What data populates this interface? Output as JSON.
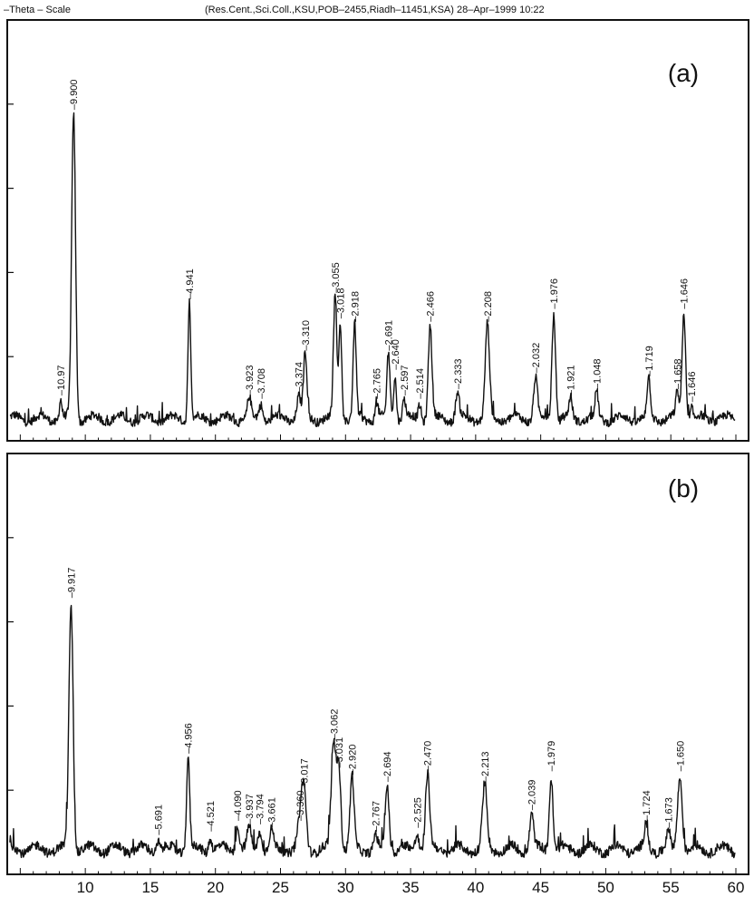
{
  "header": {
    "left": "–Theta – Scale",
    "right": "(Res.Cent.,Sci.Coll.,KSU,POB–2455,Riadh–11451,KSA) 28–Apr–1999 10:22"
  },
  "chart_data": [
    {
      "type": "line",
      "panel_label": "(a)",
      "xlim": [
        4,
        60
      ],
      "ylim": [
        0,
        100
      ],
      "x_ticks": [],
      "peaks": [
        {
          "x": 8.1,
          "y": 6,
          "w": 0.1,
          "label": "–10.97"
        },
        {
          "x": 9.1,
          "y": 95,
          "w": 0.15,
          "label": "–9.900"
        },
        {
          "x": 18.0,
          "y": 36,
          "w": 0.11,
          "label": "–4.941"
        },
        {
          "x": 22.6,
          "y": 6,
          "w": 0.14,
          "label": "–3.923"
        },
        {
          "x": 23.5,
          "y": 5,
          "w": 0.14,
          "label": "–3.708"
        },
        {
          "x": 26.4,
          "y": 7,
          "w": 0.15,
          "label": "–3.374"
        },
        {
          "x": 26.9,
          "y": 20,
          "w": 0.13,
          "label": "–3.310"
        },
        {
          "x": 29.2,
          "y": 38,
          "w": 0.13,
          "label": "–3.055"
        },
        {
          "x": 29.6,
          "y": 30,
          "w": 0.11,
          "label": "–3.018"
        },
        {
          "x": 30.7,
          "y": 29,
          "w": 0.12,
          "label": "–2.918"
        },
        {
          "x": 32.4,
          "y": 5,
          "w": 0.12,
          "label": "–2.765"
        },
        {
          "x": 33.3,
          "y": 20,
          "w": 0.12,
          "label": "–2.691"
        },
        {
          "x": 33.8,
          "y": 14,
          "w": 0.11,
          "label": "–2.640"
        },
        {
          "x": 34.5,
          "y": 6,
          "w": 0.12,
          "label": "–2.597"
        },
        {
          "x": 35.7,
          "y": 5,
          "w": 0.12,
          "label": "–2.514"
        },
        {
          "x": 36.5,
          "y": 29,
          "w": 0.14,
          "label": "–2.466"
        },
        {
          "x": 38.6,
          "y": 8,
          "w": 0.14,
          "label": "–2.333"
        },
        {
          "x": 40.9,
          "y": 29,
          "w": 0.16,
          "label": "–2.208"
        },
        {
          "x": 44.6,
          "y": 13,
          "w": 0.15,
          "label": "–2.032"
        },
        {
          "x": 46.0,
          "y": 33,
          "w": 0.14,
          "label": "–1.976"
        },
        {
          "x": 47.3,
          "y": 6,
          "w": 0.12,
          "label": "–1.921"
        },
        {
          "x": 49.3,
          "y": 8,
          "w": 0.12,
          "label": "–1.048"
        },
        {
          "x": 53.3,
          "y": 12,
          "w": 0.13,
          "label": "–1.719"
        },
        {
          "x": 55.5,
          "y": 8,
          "w": 0.12,
          "label": "–1.658"
        },
        {
          "x": 56.0,
          "y": 33,
          "w": 0.14,
          "label": "–1.646"
        },
        {
          "x": 56.6,
          "y": 4,
          "w": 0.1,
          "label": "–1.646"
        }
      ]
    },
    {
      "type": "line",
      "panel_label": "(b)",
      "xlim": [
        4,
        60
      ],
      "ylim": [
        0,
        100
      ],
      "x_ticks": [
        10,
        15,
        20,
        25,
        30,
        35,
        40,
        45,
        50,
        55,
        60
      ],
      "peaks": [
        {
          "x": 8.9,
          "y": 70,
          "w": 0.16,
          "label": "–9.917"
        },
        {
          "x": 15.6,
          "y": 3,
          "w": 0.12,
          "label": "–5.691"
        },
        {
          "x": 17.9,
          "y": 26,
          "w": 0.12,
          "label": "–4.956"
        },
        {
          "x": 19.6,
          "y": 4,
          "w": 0.12,
          "label": "–4.521"
        },
        {
          "x": 21.7,
          "y": 7,
          "w": 0.14,
          "label": "–4.090"
        },
        {
          "x": 22.6,
          "y": 6,
          "w": 0.14,
          "label": "–3.937"
        },
        {
          "x": 23.4,
          "y": 6,
          "w": 0.14,
          "label": "–3.794"
        },
        {
          "x": 24.3,
          "y": 5,
          "w": 0.14,
          "label": "–3.661"
        },
        {
          "x": 26.5,
          "y": 7,
          "w": 0.2,
          "label": "–3.360"
        },
        {
          "x": 26.8,
          "y": 16,
          "w": 0.18,
          "label": "–3.017"
        },
        {
          "x": 29.1,
          "y": 30,
          "w": 0.19,
          "label": "–3.062"
        },
        {
          "x": 29.5,
          "y": 22,
          "w": 0.15,
          "label": "–3.031"
        },
        {
          "x": 30.5,
          "y": 20,
          "w": 0.15,
          "label": "–2.920"
        },
        {
          "x": 32.3,
          "y": 4,
          "w": 0.12,
          "label": "–2.767"
        },
        {
          "x": 33.2,
          "y": 18,
          "w": 0.15,
          "label": "–2.694"
        },
        {
          "x": 35.5,
          "y": 5,
          "w": 0.14,
          "label": "–2.525"
        },
        {
          "x": 36.3,
          "y": 21,
          "w": 0.16,
          "label": "–2.470"
        },
        {
          "x": 40.7,
          "y": 18,
          "w": 0.17,
          "label": "–2.213"
        },
        {
          "x": 44.3,
          "y": 10,
          "w": 0.15,
          "label": "–2.039"
        },
        {
          "x": 45.8,
          "y": 21,
          "w": 0.14,
          "label": "–1.979"
        },
        {
          "x": 53.1,
          "y": 7,
          "w": 0.13,
          "label": "–1.724"
        },
        {
          "x": 54.8,
          "y": 5,
          "w": 0.13,
          "label": "–1.673"
        },
        {
          "x": 55.7,
          "y": 21,
          "w": 0.18,
          "label": "–1.650"
        }
      ]
    }
  ]
}
